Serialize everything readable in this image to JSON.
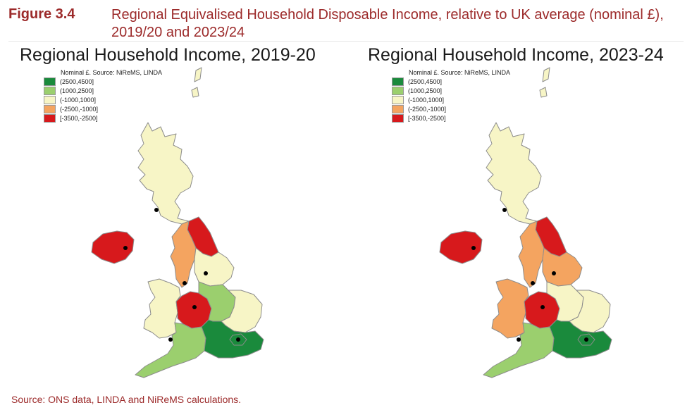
{
  "figure": {
    "number": "Figure 3.4",
    "title": "Regional Equivalised Household Disposable Income, relative to UK average (nominal £), 2019/20 and 2023/24"
  },
  "maps": [
    {
      "title": "Regional Household Income, 2019-20",
      "legend_header": "Nominal £. Source: NiReMS, LINDA",
      "region_bands": {
        "scotland": "(-1000,1000]",
        "northern_ireland": "[-3500,-2500]",
        "north_east": "[-3500,-2500]",
        "north_west": "(-2500,-1000]",
        "yorkshire": "(-1000,1000]",
        "wales": "(-1000,1000]",
        "west_midlands": "[-3500,-2500]",
        "east_midlands": "(1000,2500]",
        "east_of_england": "(-1000,1000]",
        "south_west": "(1000,2500]",
        "south_east": "(2500,4500]",
        "london": "(2500,4500]"
      }
    },
    {
      "title": "Regional Household Income, 2023-24",
      "legend_header": "Nominal £. Source: NiReMS, LINDA",
      "region_bands": {
        "scotland": "(-1000,1000]",
        "northern_ireland": "[-3500,-2500]",
        "north_east": "[-3500,-2500]",
        "north_west": "(-2500,-1000]",
        "yorkshire": "(-2500,-1000]",
        "wales": "(-2500,-1000]",
        "west_midlands": "[-3500,-2500]",
        "east_midlands": "(-1000,1000]",
        "east_of_england": "(-1000,1000]",
        "south_west": "(1000,2500]",
        "south_east": "(2500,4500]",
        "london": "(2500,4500]"
      }
    }
  ],
  "legend": [
    {
      "label": "(2500,4500]",
      "color": "#1a8a3c"
    },
    {
      "label": "(1000,2500]",
      "color": "#9bcf6e"
    },
    {
      "label": "(-1000,1000]",
      "color": "#f7f5c6"
    },
    {
      "label": "(-2500,-1000]",
      "color": "#f4a460"
    },
    {
      "label": "[-3500,-2500]",
      "color": "#d7191c"
    }
  ],
  "source": "Source: ONS data, LINDA and NiReMS calculations."
}
